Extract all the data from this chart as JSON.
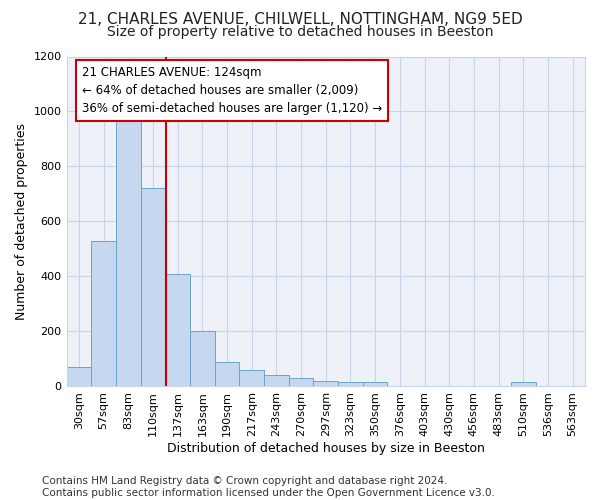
{
  "title1": "21, CHARLES AVENUE, CHILWELL, NOTTINGHAM, NG9 5ED",
  "title2": "Size of property relative to detached houses in Beeston",
  "xlabel": "Distribution of detached houses by size in Beeston",
  "ylabel": "Number of detached properties",
  "categories": [
    "30sqm",
    "57sqm",
    "83sqm",
    "110sqm",
    "137sqm",
    "163sqm",
    "190sqm",
    "217sqm",
    "243sqm",
    "270sqm",
    "297sqm",
    "323sqm",
    "350sqm",
    "376sqm",
    "403sqm",
    "430sqm",
    "456sqm",
    "483sqm",
    "510sqm",
    "536sqm",
    "563sqm"
  ],
  "values": [
    70,
    530,
    1000,
    720,
    410,
    200,
    90,
    60,
    42,
    32,
    20,
    17,
    17,
    3,
    3,
    3,
    3,
    3,
    15,
    3,
    3
  ],
  "bar_color": "#c5d8f0",
  "bar_edge_color": "#6ba3cc",
  "vline_color": "#cc0000",
  "annotation_text": "21 CHARLES AVENUE: 124sqm\n← 64% of detached houses are smaller (2,009)\n36% of semi-detached houses are larger (1,120) →",
  "annotation_box_color": "#ffffff",
  "annotation_box_edge_color": "#cc0000",
  "ylim": [
    0,
    1200
  ],
  "yticks": [
    0,
    200,
    400,
    600,
    800,
    1000,
    1200
  ],
  "grid_color": "#c8d4e8",
  "bg_color": "#ffffff",
  "plot_bg_color": "#eef2f8",
  "footer": "Contains HM Land Registry data © Crown copyright and database right 2024.\nContains public sector information licensed under the Open Government Licence v3.0.",
  "title1_fontsize": 11,
  "title2_fontsize": 10,
  "xlabel_fontsize": 9,
  "ylabel_fontsize": 9,
  "tick_fontsize": 8,
  "annotation_fontsize": 8.5,
  "footer_fontsize": 7.5
}
